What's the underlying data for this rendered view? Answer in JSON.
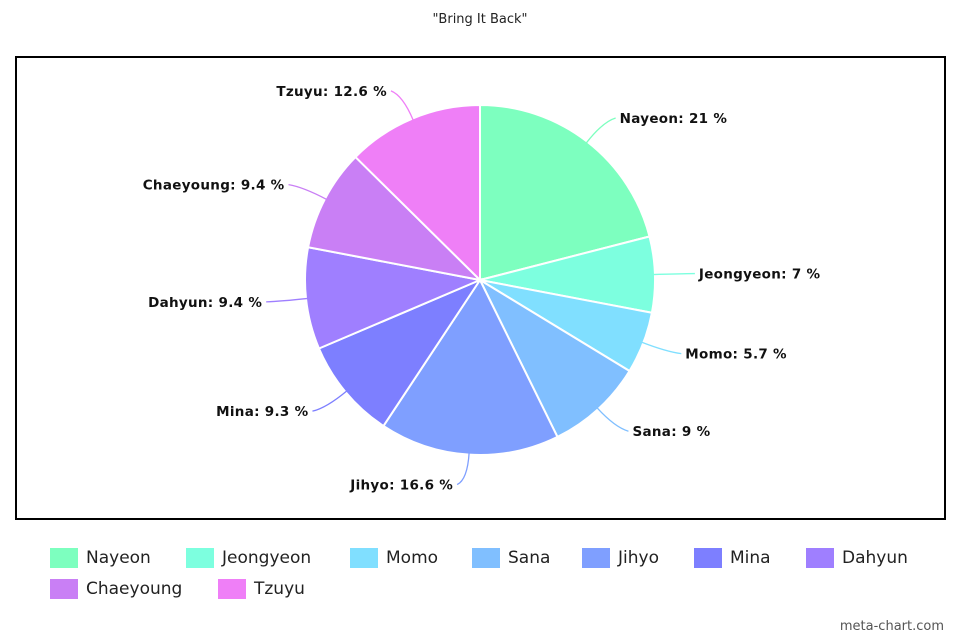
{
  "chart_data": {
    "type": "pie",
    "title": "\"Bring It Back\"",
    "legend_position": "bottom",
    "slices": [
      {
        "label": "Nayeon",
        "value": 21,
        "display": "Nayeon: 21 %",
        "color": "#7dffbf"
      },
      {
        "label": "Jeongyeon",
        "value": 7,
        "display": "Jeongyeon: 7 %",
        "color": "#7dffdf"
      },
      {
        "label": "Momo",
        "value": 5.7,
        "display": "Momo: 5.7 %",
        "color": "#80dfff"
      },
      {
        "label": "Sana",
        "value": 9,
        "display": "Sana: 9 %",
        "color": "#80bfff"
      },
      {
        "label": "Jihyo",
        "value": 16.6,
        "display": "Jihyo: 16.6 %",
        "color": "#7f9fff"
      },
      {
        "label": "Mina",
        "value": 9.3,
        "display": "Mina: 9.3 %",
        "color": "#7d7fff"
      },
      {
        "label": "Dahyun",
        "value": 9.4,
        "display": "Dahyun: 9.4 %",
        "color": "#9f7fff"
      },
      {
        "label": "Chaeyoung",
        "value": 9.4,
        "display": "Chaeyoung: 9.4 %",
        "color": "#c97ff5"
      },
      {
        "label": "Tzuyu",
        "value": 12.6,
        "display": "Tzuyu: 12.6 %",
        "color": "#ef7ff7"
      }
    ]
  },
  "credit": "meta-chart.com"
}
